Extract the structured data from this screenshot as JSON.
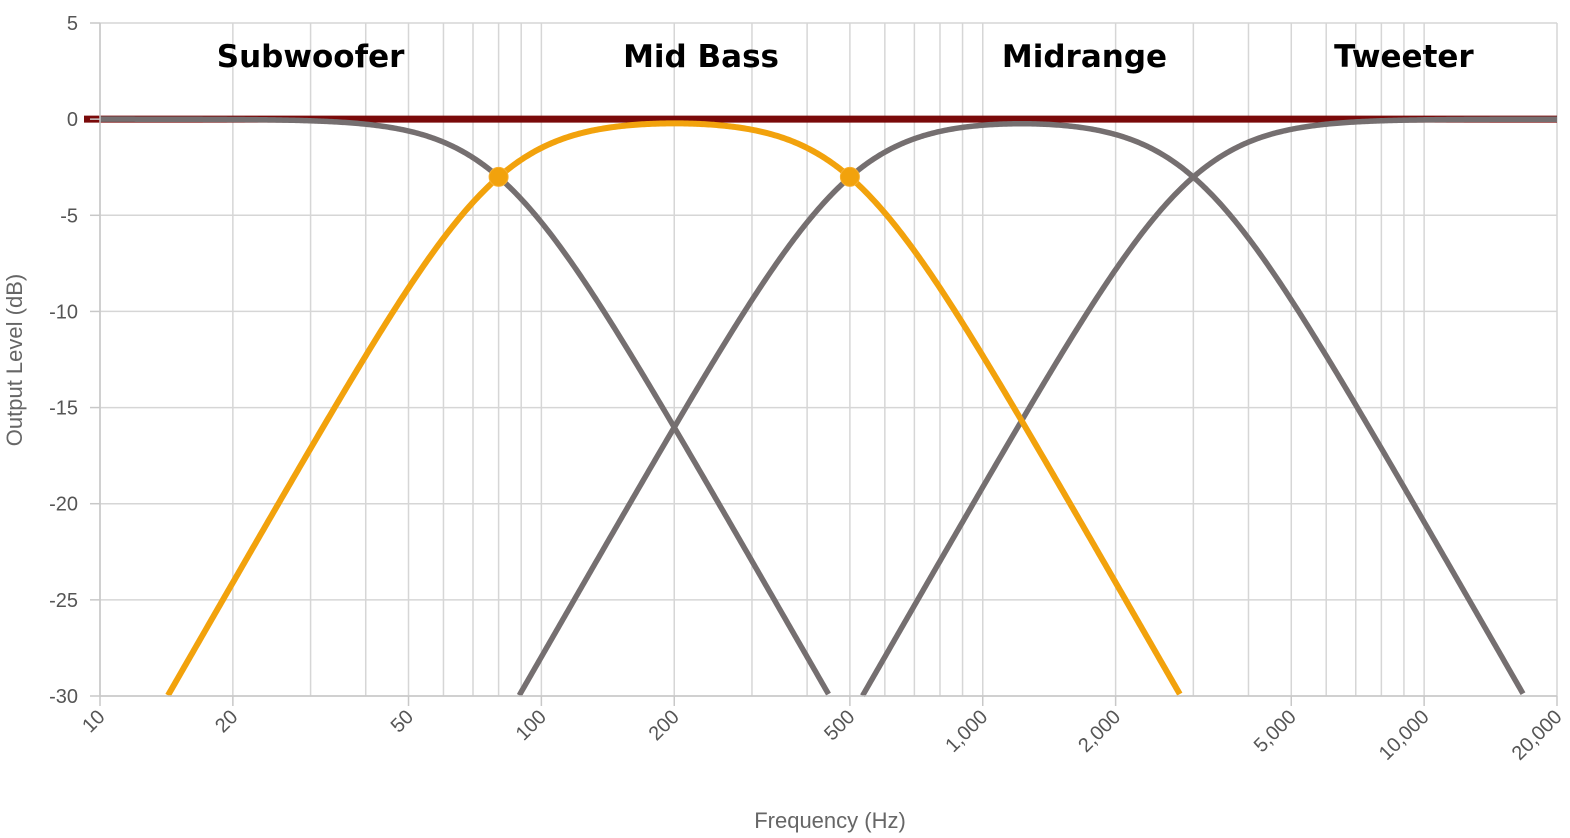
{
  "chart_data": {
    "type": "line",
    "title": "",
    "xlabel": "Frequency (Hz)",
    "ylabel": "Output Level (dB)",
    "x_scale": "log",
    "xlim": [
      10,
      20000
    ],
    "ylim": [
      -30,
      5
    ],
    "grid": true,
    "x_ticks": [
      10,
      20,
      50,
      100,
      200,
      500,
      1000,
      2000,
      5000,
      10000,
      20000
    ],
    "x_tick_labels": [
      "10",
      "20",
      "50",
      "100",
      "200",
      "500",
      "1,000",
      "2,000",
      "5,000",
      "10,000",
      "20,000"
    ],
    "y_ticks": [
      5,
      0,
      -5,
      -10,
      -15,
      -20,
      -25,
      -30
    ],
    "y_tick_labels": [
      "5",
      "0",
      "-5",
      "-10",
      "-15",
      "-20",
      "-25",
      "-30"
    ],
    "band_labels": [
      {
        "text": "Subwoofer",
        "x": 30
      },
      {
        "text": "Mid Bass",
        "x": 230
      },
      {
        "text": "Midrange",
        "x": 1700
      },
      {
        "text": "Tweeter",
        "x": 9000
      }
    ],
    "reference_line": {
      "y": 0,
      "color": "#7a0a0a"
    },
    "crossover_points": [
      {
        "x": 80,
        "y": -3
      },
      {
        "x": 500,
        "y": -3
      },
      {
        "x": 3000,
        "y": -3
      }
    ],
    "series": [
      {
        "type": "lowpass",
        "fc": 80,
        "order": 4,
        "color": "#756f70",
        "highlight": false
      },
      {
        "type": "bandpass",
        "fl": 80,
        "fh": 500,
        "order": 4,
        "color": "#f2a20c",
        "highlight": true
      },
      {
        "type": "bandpass",
        "fl": 500,
        "fh": 3000,
        "order": 4,
        "color": "#756f70",
        "highlight": false
      },
      {
        "type": "highpass",
        "fc": 3000,
        "order": 4,
        "color": "#756f70",
        "highlight": false
      }
    ],
    "highlight_markers": [
      {
        "x": 80,
        "y": -3
      },
      {
        "x": 500,
        "y": -3
      }
    ]
  }
}
